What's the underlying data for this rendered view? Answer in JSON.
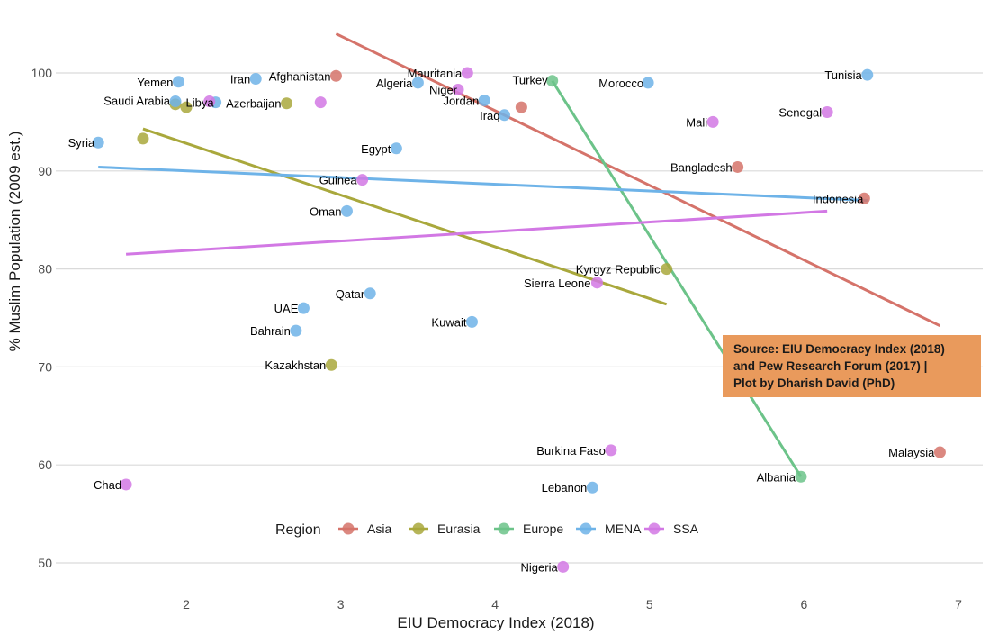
{
  "chart_data": {
    "type": "scatter",
    "xlabel": "EIU Democracy Index (2018)",
    "ylabel": "% Muslim Population (2009 est.)",
    "xlim": [
      1.2,
      7.1
    ],
    "ylim": [
      47,
      105
    ],
    "x_ticks": [
      2,
      3,
      4,
      5,
      6,
      7
    ],
    "y_ticks": [
      50,
      60,
      70,
      80,
      90,
      100
    ],
    "grid": "horizontal",
    "legend_title": "Region",
    "legend_position": "bottom",
    "series": [
      {
        "name": "Asia",
        "color": "#d5736a",
        "points": [
          {
            "label": "Afghanistan",
            "x": 2.97,
            "y": 99.7
          },
          {
            "label": "",
            "x": 4.17,
            "y": 96.5
          },
          {
            "label": "Bangladesh",
            "x": 5.57,
            "y": 90.4
          },
          {
            "label": "Indonesia",
            "x": 6.39,
            "y": 87.2
          },
          {
            "label": "Malaysia",
            "x": 6.88,
            "y": 61.3
          }
        ],
        "trend": {
          "x": [
            2.97,
            6.88
          ],
          "y": [
            104.0,
            74.2
          ]
        }
      },
      {
        "name": "Eurasia",
        "color": "#a9a83c",
        "points": [
          {
            "label": "",
            "x": 1.93,
            "y": 96.8
          },
          {
            "label": "",
            "x": 2.0,
            "y": 96.5
          },
          {
            "label": "Azerbaijan",
            "x": 2.65,
            "y": 96.9
          },
          {
            "label": "",
            "x": 1.72,
            "y": 93.3
          },
          {
            "label": "Kyrgyz Republic",
            "x": 5.11,
            "y": 80.0
          },
          {
            "label": "Kazakhstan",
            "x": 2.94,
            "y": 70.2
          }
        ],
        "trend": {
          "x": [
            1.72,
            5.11
          ],
          "y": [
            94.3,
            76.4
          ]
        }
      },
      {
        "name": "Europe",
        "color": "#6cc389",
        "points": [
          {
            "label": "Turkey",
            "x": 4.37,
            "y": 99.2
          },
          {
            "label": "Albania",
            "x": 5.98,
            "y": 58.8
          }
        ],
        "trend": {
          "x": [
            4.37,
            5.98
          ],
          "y": [
            99.2,
            58.8
          ]
        }
      },
      {
        "name": "MENA",
        "color": "#6eb3e8",
        "points": [
          {
            "label": "Yemen",
            "x": 1.95,
            "y": 99.1
          },
          {
            "label": "Iran",
            "x": 2.45,
            "y": 99.4
          },
          {
            "label": "Saudi Arabia",
            "x": 1.93,
            "y": 97.1
          },
          {
            "label": "Libya",
            "x": 2.19,
            "y": 97.0
          },
          {
            "label": "Algeria",
            "x": 3.5,
            "y": 99.0
          },
          {
            "label": "Jordan",
            "x": 3.93,
            "y": 97.2
          },
          {
            "label": "Iraq",
            "x": 4.06,
            "y": 95.7
          },
          {
            "label": "Morocco",
            "x": 4.99,
            "y": 99.0
          },
          {
            "label": "Tunisia",
            "x": 6.41,
            "y": 99.8
          },
          {
            "label": "Syria",
            "x": 1.43,
            "y": 92.9
          },
          {
            "label": "Egypt",
            "x": 3.36,
            "y": 92.3
          },
          {
            "label": "Oman",
            "x": 3.04,
            "y": 85.9
          },
          {
            "label": "Qatar",
            "x": 3.19,
            "y": 77.5
          },
          {
            "label": "UAE",
            "x": 2.76,
            "y": 76.0
          },
          {
            "label": "Bahrain",
            "x": 2.71,
            "y": 73.7
          },
          {
            "label": "Kuwait",
            "x": 3.85,
            "y": 74.6
          },
          {
            "label": "Lebanon",
            "x": 4.63,
            "y": 57.7
          }
        ],
        "trend": {
          "x": [
            1.43,
            6.41
          ],
          "y": [
            90.4,
            87.0
          ]
        }
      },
      {
        "name": "SSA",
        "color": "#d278e4",
        "points": [
          {
            "label": "Mauritania",
            "x": 3.82,
            "y": 100.0
          },
          {
            "label": "Niger",
            "x": 3.76,
            "y": 98.3
          },
          {
            "label": "",
            "x": 2.15,
            "y": 97.1
          },
          {
            "label": "",
            "x": 2.87,
            "y": 97.0
          },
          {
            "label": "Mali",
            "x": 5.41,
            "y": 95.0
          },
          {
            "label": "Senegal",
            "x": 6.15,
            "y": 96.0
          },
          {
            "label": "Guinea",
            "x": 3.14,
            "y": 89.1
          },
          {
            "label": "Sierra Leone",
            "x": 4.66,
            "y": 78.6
          },
          {
            "label": "Burkina Faso",
            "x": 4.75,
            "y": 61.5
          },
          {
            "label": "Chad",
            "x": 1.61,
            "y": 58.0
          },
          {
            "label": "Nigeria",
            "x": 4.44,
            "y": 49.6
          }
        ],
        "trend": {
          "x": [
            1.61,
            6.15
          ],
          "y": [
            81.5,
            85.9
          ]
        }
      }
    ]
  },
  "source_note": {
    "line1": "Source: EIU Democracy Index (2018)",
    "line2": "and Pew Research Forum (2017) |",
    "line3": "Plot by Dharish David (PhD)",
    "color": "#e99a5c"
  }
}
